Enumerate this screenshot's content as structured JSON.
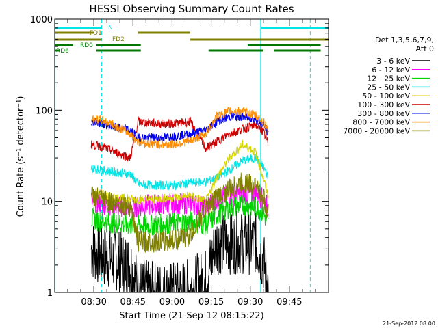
{
  "chart_data": {
    "type": "line",
    "title": "HESSI Observing Summary Count Rates",
    "xlabel": "Start Time (21-Sep-12 08:15:22)",
    "ylabel": "Count Rate (s⁻¹ detector⁻¹)",
    "y_scale": "log",
    "ylim": [
      1,
      1000
    ],
    "y_ticks": [
      "1",
      "10",
      "100",
      "1000"
    ],
    "xlim": [
      "08:15",
      "10:00"
    ],
    "x_ticks": [
      "08:30",
      "08:45",
      "09:00",
      "09:15",
      "09:30",
      "09:45"
    ],
    "footer_date": "21-Sep-2012 08:00",
    "legend": {
      "placement": "right",
      "header_lines": [
        "Det 1,3,5,6,7,9,",
        "Att 0"
      ]
    },
    "grid": false,
    "annotations": {
      "night_color": "#00e5e5",
      "night_label": "N",
      "night_intervals": [
        [
          "08:15",
          "08:33"
        ],
        [
          "09:34",
          "10:00"
        ]
      ],
      "saa_dashed_lines": [
        "08:33",
        "09:53"
      ],
      "solid_cyan_lines": [
        "08:15",
        "09:34"
      ],
      "fd1_label": "FD1",
      "fd1_color": "#808000",
      "fd1_intervals": [
        [
          "08:15",
          "08:30"
        ],
        [
          "08:47",
          "09:07"
        ]
      ],
      "fd2_label": "FD2",
      "fd2_color": "#808000",
      "fd2_intervals": [
        [
          "08:15",
          "08:33"
        ],
        [
          "09:07",
          "10:00"
        ]
      ],
      "rd0_label": "RD0",
      "rd0_color": "#007800",
      "rd0_intervals": [
        [
          "08:15",
          "08:22"
        ],
        [
          "08:31",
          "08:48"
        ],
        [
          "09:29",
          "09:57"
        ]
      ],
      "rd6_label": "RD6",
      "rd6_color": "#007800",
      "rd6_intervals": [
        [
          "08:15",
          "08:17"
        ],
        [
          "08:31",
          "08:48"
        ],
        [
          "09:14",
          "09:35"
        ],
        [
          "09:39",
          "09:57"
        ]
      ]
    },
    "series": [
      {
        "name": "3 - 6 keV",
        "color": "#000000",
        "x": [
          "08:29",
          "08:33",
          "08:38",
          "08:44",
          "08:47",
          "08:52",
          "08:57",
          "09:02",
          "09:07",
          "09:13",
          "09:17",
          "09:22",
          "09:27",
          "09:32",
          "09:35",
          "09:37"
        ],
        "y": [
          3,
          2.5,
          2.3,
          2,
          1.1,
          1,
          1,
          1,
          1.1,
          1.4,
          3.5,
          3.5,
          3.5,
          3.5,
          2.2,
          1.1
        ]
      },
      {
        "name": "6 - 12 keV",
        "color": "#ff00ff",
        "x": [
          "08:29",
          "08:33",
          "08:38",
          "08:44",
          "08:47",
          "08:52",
          "08:57",
          "09:02",
          "09:07",
          "09:13",
          "09:17",
          "09:22",
          "09:27",
          "09:32",
          "09:35",
          "09:37"
        ],
        "y": [
          10,
          9.5,
          9,
          8.5,
          8.8,
          9.2,
          9.3,
          9.3,
          9.6,
          8.5,
          10.5,
          11.5,
          12,
          12.5,
          10.5,
          8.5
        ]
      },
      {
        "name": "12 - 25 keV",
        "color": "#00d400",
        "x": [
          "08:29",
          "08:33",
          "08:38",
          "08:44",
          "08:47",
          "08:52",
          "08:57",
          "09:02",
          "09:07",
          "09:13",
          "09:17",
          "09:22",
          "09:27",
          "09:32",
          "09:35",
          "09:37"
        ],
        "y": [
          6.5,
          6,
          5.8,
          5.5,
          5.5,
          5.5,
          5.6,
          5.8,
          6,
          5.5,
          7,
          8.5,
          9.2,
          8.7,
          7.5,
          5.5
        ]
      },
      {
        "name": "25 - 50 keV",
        "color": "#00e5e5",
        "x": [
          "08:29",
          "08:33",
          "08:38",
          "08:44",
          "08:47",
          "08:52",
          "08:57",
          "09:02",
          "09:07",
          "09:13",
          "09:17",
          "09:22",
          "09:27",
          "09:32",
          "09:35",
          "09:37"
        ],
        "y": [
          23,
          22,
          21,
          20,
          15.5,
          15,
          15,
          15,
          16,
          16.5,
          18,
          22,
          28,
          30,
          24,
          18
        ]
      },
      {
        "name": "50 - 100 keV",
        "color": "#d4d400",
        "x": [
          "08:29",
          "08:33",
          "08:38",
          "08:44",
          "08:47",
          "08:52",
          "08:57",
          "09:02",
          "09:07",
          "09:13",
          "09:17",
          "09:22",
          "09:27",
          "09:32",
          "09:35",
          "09:37"
        ],
        "y": [
          12,
          11.5,
          11,
          10.5,
          10.5,
          10.5,
          10.8,
          11,
          11.5,
          10,
          18,
          30,
          42,
          35,
          18,
          11
        ]
      },
      {
        "name": "100 - 300 keV",
        "color": "#cc0000",
        "x": [
          "08:29",
          "08:33",
          "08:38",
          "08:44",
          "08:47",
          "08:52",
          "08:57",
          "09:02",
          "09:07",
          "09:13",
          "09:17",
          "09:22",
          "09:27",
          "09:32",
          "09:35",
          "09:37"
        ],
        "y": [
          42,
          40,
          35,
          30,
          75,
          72,
          71,
          72,
          75,
          38,
          45,
          55,
          62,
          70,
          58,
          42
        ]
      },
      {
        "name": "300 - 800 keV",
        "color": "#0000ee",
        "x": [
          "08:29",
          "08:33",
          "08:38",
          "08:44",
          "08:47",
          "08:52",
          "08:57",
          "09:02",
          "09:07",
          "09:13",
          "09:17",
          "09:22",
          "09:27",
          "09:32",
          "09:35",
          "09:37"
        ],
        "y": [
          75,
          72,
          65,
          60,
          50,
          50,
          50,
          52,
          55,
          60,
          75,
          85,
          85,
          80,
          70,
          55
        ]
      },
      {
        "name": "800 - 7000 keV",
        "color": "#ff8c00",
        "x": [
          "08:29",
          "08:33",
          "08:38",
          "08:44",
          "08:47",
          "08:52",
          "08:57",
          "09:02",
          "09:07",
          "09:13",
          "09:17",
          "09:22",
          "09:27",
          "09:32",
          "09:35",
          "09:37"
        ],
        "y": [
          80,
          78,
          68,
          55,
          45,
          43,
          42,
          43,
          46,
          55,
          85,
          98,
          98,
          88,
          75,
          60
        ]
      },
      {
        "name": "7000 - 20000 keV",
        "color": "#808000",
        "x": [
          "08:29",
          "08:33",
          "08:38",
          "08:44",
          "08:47",
          "08:52",
          "08:57",
          "09:02",
          "09:07",
          "09:13",
          "09:17",
          "09:22",
          "09:27",
          "09:32",
          "09:35",
          "09:37"
        ],
        "y": [
          11.5,
          10.5,
          9.5,
          9,
          3.6,
          3.6,
          3.7,
          3.8,
          4.2,
          8.5,
          11,
          13.5,
          16,
          15,
          11,
          7
        ]
      }
    ]
  }
}
